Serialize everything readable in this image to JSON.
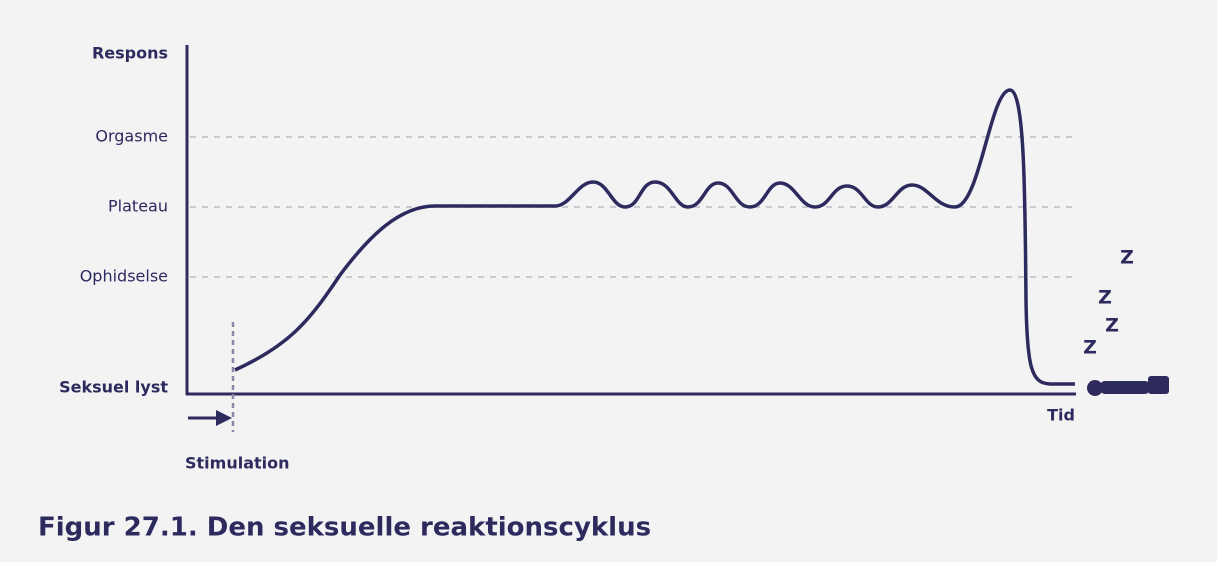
{
  "axis": {
    "y_label": "Respons",
    "x_label": "Tid"
  },
  "levels": [
    "Orgasme",
    "Plateau",
    "Ophidselse",
    "Seksuel lyst"
  ],
  "stimulation": "Stimulation",
  "sleep": [
    "Z",
    "Z",
    "Z",
    "Z"
  ],
  "caption": "Figur 27.1. Den seksuelle reaktionscyklus"
}
